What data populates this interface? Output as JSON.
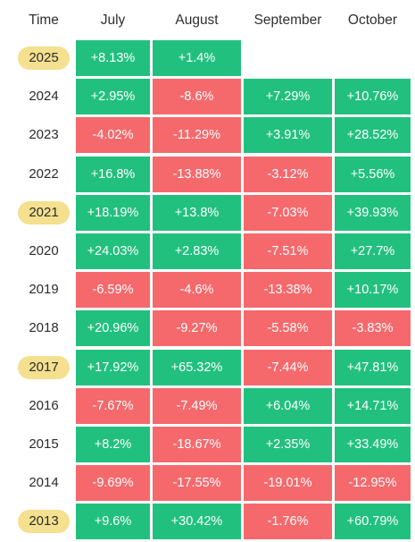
{
  "colors": {
    "positive": "#22c07e",
    "negative": "#f5696c",
    "highlight": "#f4e08f"
  },
  "header": {
    "time": "Time",
    "months": [
      "July",
      "August",
      "September",
      "October"
    ]
  },
  "rows": [
    {
      "year": "2025",
      "highlight": true,
      "values": [
        "+8.13%",
        "+1.4%",
        "",
        ""
      ]
    },
    {
      "year": "2024",
      "highlight": false,
      "values": [
        "+2.95%",
        "-8.6%",
        "+7.29%",
        "+10.76%"
      ]
    },
    {
      "year": "2023",
      "highlight": false,
      "values": [
        "-4.02%",
        "-11.29%",
        "+3.91%",
        "+28.52%"
      ]
    },
    {
      "year": "2022",
      "highlight": false,
      "values": [
        "+16.8%",
        "-13.88%",
        "-3.12%",
        "+5.56%"
      ]
    },
    {
      "year": "2021",
      "highlight": true,
      "values": [
        "+18.19%",
        "+13.8%",
        "-7.03%",
        "+39.93%"
      ]
    },
    {
      "year": "2020",
      "highlight": false,
      "values": [
        "+24.03%",
        "+2.83%",
        "-7.51%",
        "+27.7%"
      ]
    },
    {
      "year": "2019",
      "highlight": false,
      "values": [
        "-6.59%",
        "-4.6%",
        "-13.38%",
        "+10.17%"
      ]
    },
    {
      "year": "2018",
      "highlight": false,
      "values": [
        "+20.96%",
        "-9.27%",
        "-5.58%",
        "-3.83%"
      ]
    },
    {
      "year": "2017",
      "highlight": true,
      "values": [
        "+17.92%",
        "+65.32%",
        "-7.44%",
        "+47.81%"
      ]
    },
    {
      "year": "2016",
      "highlight": false,
      "values": [
        "-7.67%",
        "-7.49%",
        "+6.04%",
        "+14.71%"
      ]
    },
    {
      "year": "2015",
      "highlight": false,
      "values": [
        "+8.2%",
        "-18.67%",
        "+2.35%",
        "+33.49%"
      ]
    },
    {
      "year": "2014",
      "highlight": false,
      "values": [
        "-9.69%",
        "-17.55%",
        "-19.01%",
        "-12.95%"
      ]
    },
    {
      "year": "2013",
      "highlight": true,
      "values": [
        "+9.6%",
        "+30.42%",
        "-1.76%",
        "+60.79%"
      ]
    }
  ]
}
